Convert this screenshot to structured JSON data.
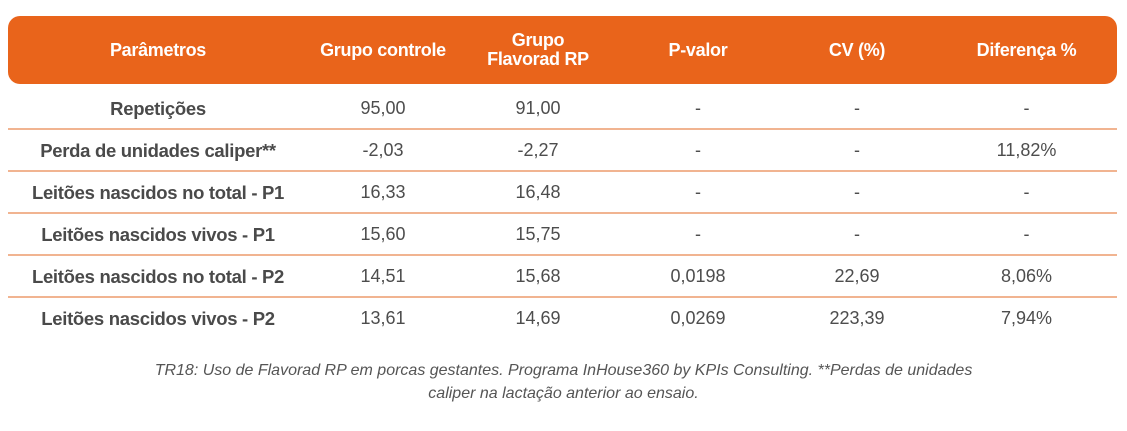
{
  "table": {
    "headers": [
      "Parâmetros",
      "Grupo controle",
      "Grupo\nFlavorad RP",
      "P-valor",
      "CV (%)",
      "Diferença %"
    ],
    "header_grupo_flavorad_line1": "Grupo",
    "header_grupo_flavorad_line2": "Flavorad RP",
    "rows": [
      [
        "Repetições",
        "95,00",
        "91,00",
        "-",
        "-",
        "-"
      ],
      [
        "Perda de unidades caliper**",
        "-2,03",
        "-2,27",
        "-",
        "-",
        "11,82%"
      ],
      [
        "Leitões nascidos no total - P1",
        "16,33",
        "16,48",
        "-",
        "-",
        "-"
      ],
      [
        "Leitões nascidos vivos - P1",
        "15,60",
        "15,75",
        "-",
        "-",
        "-"
      ],
      [
        "Leitões nascidos no total - P2",
        "14,51",
        "15,68",
        "0,0198",
        "22,69",
        "8,06%"
      ],
      [
        "Leitões nascidos vivos - P2",
        "13,61",
        "14,69",
        "0,0269",
        "223,39",
        "7,94%"
      ]
    ]
  },
  "caption": {
    "line1": "TR18: Uso de Flavorad RP em porcas gestantes. Programa InHouse360 by KPIs Consulting. **Perdas de unidades",
    "line2": "caliper na lactação anterior ao ensaio."
  },
  "colors": {
    "header_bg": "#e9641b",
    "row_divider": "#f1b491",
    "text": "#4a4a4a"
  }
}
